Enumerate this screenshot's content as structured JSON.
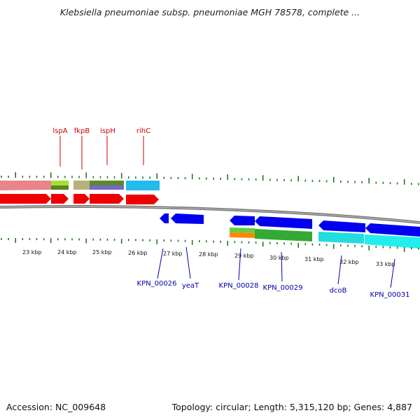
{
  "title": "Klebsiella pneumoniae subsp. pneumoniae MGH 78578, complete ...",
  "footer": {
    "accession": "Accession: NC_009648",
    "summary": "Topology: circular; Length: 5,315,120 bp; Genes: 4,887"
  },
  "colors": {
    "outer_label": "#cc0000",
    "inner_label": "#0000aa",
    "tick": "#227722",
    "backbone": "#888888"
  },
  "scale_labels": [
    "23 kbp",
    "24 kbp",
    "25 kbp",
    "26 kbp",
    "27 kbp",
    "28 kbp",
    "29 kbp",
    "30 kbp",
    "31 kbp",
    "32 kbp",
    "33 kbp"
  ],
  "outer_genes": [
    "lspA",
    "fkpB",
    "ispH",
    "rihC"
  ],
  "inner_genes": [
    "KPN_00026",
    "yeaT",
    "KPN_00028",
    "KPN_00029",
    "dcoB",
    "KPN_00031"
  ]
}
